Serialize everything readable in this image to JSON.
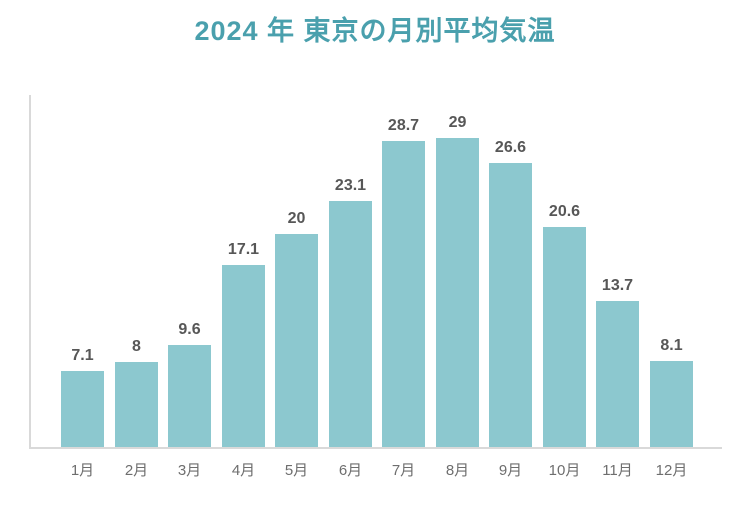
{
  "chart_data": {
    "type": "bar",
    "title": "2024 年 東京の月別平均気温",
    "categories": [
      "1月",
      "2月",
      "3月",
      "4月",
      "5月",
      "6月",
      "7月",
      "8月",
      "9月",
      "10月",
      "11月",
      "12月"
    ],
    "values": [
      7.1,
      8,
      9.6,
      17.1,
      20,
      23.1,
      28.7,
      29,
      26.6,
      20.6,
      13.7,
      8.1
    ],
    "value_labels": [
      "7.1",
      "8",
      "9.6",
      "17.1",
      "20",
      "23.1",
      "28.7",
      "29",
      "26.6",
      "20.6",
      "13.7",
      "8.1"
    ],
    "xlabel": "",
    "ylabel": "",
    "ylim": [
      0,
      33
    ],
    "grid": false,
    "legend": "none",
    "y_ticks_visible": false,
    "colors": {
      "bar": "#8cc8cf",
      "title": "#4aa0ad",
      "value_label": "#575757",
      "axis_label": "#6e6e6e",
      "axis_line": "#d9d9d9",
      "background": "#ffffff"
    }
  }
}
